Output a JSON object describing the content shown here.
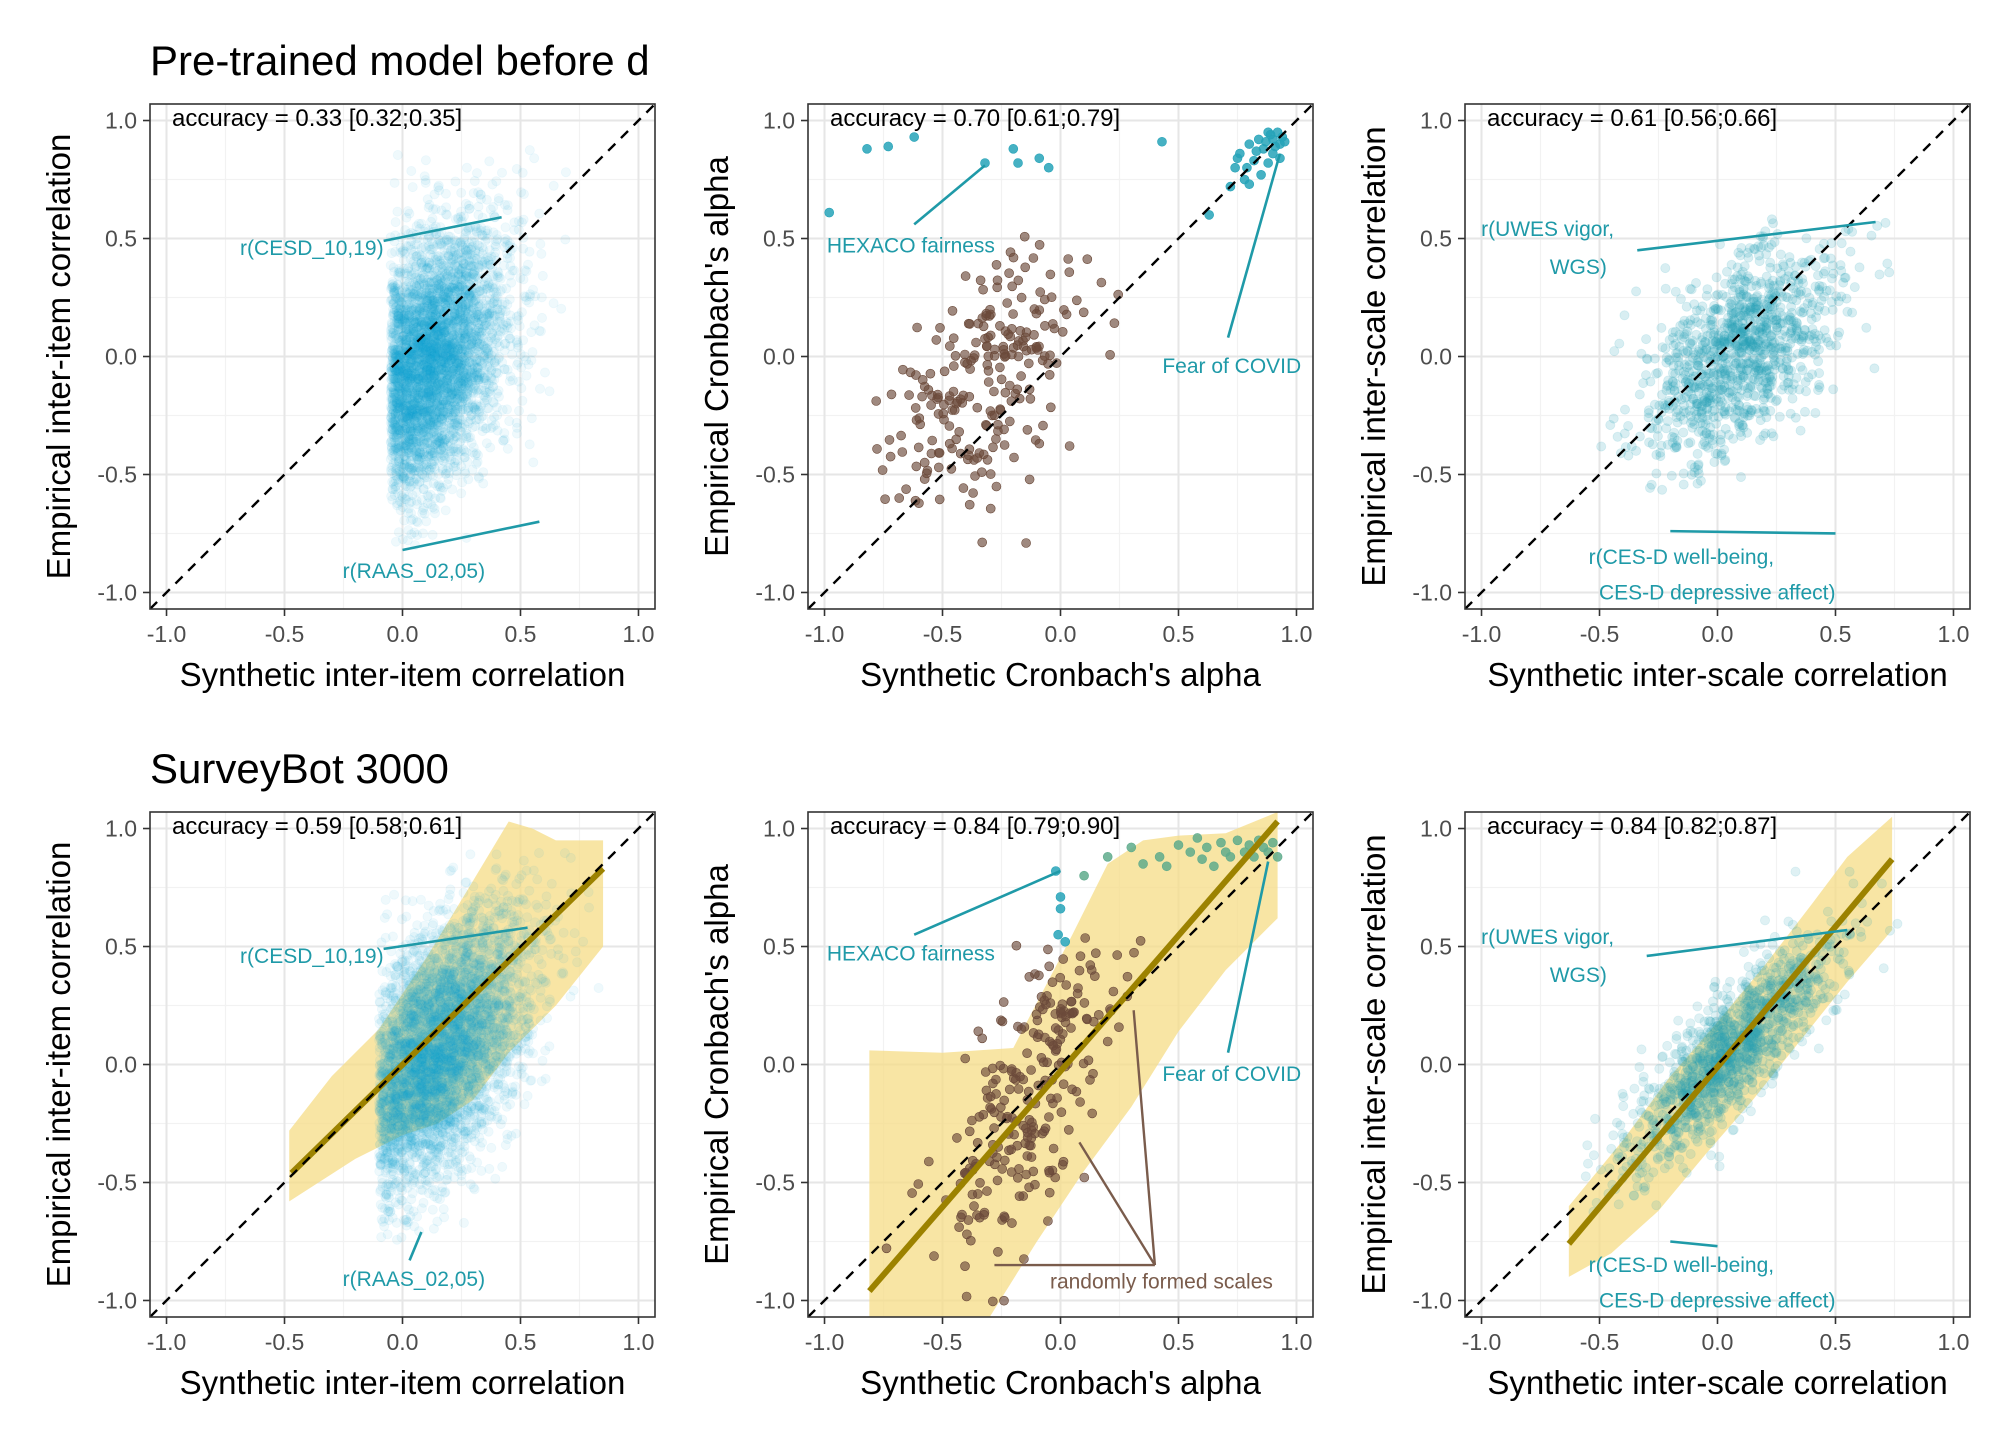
{
  "figure": {
    "row_titles": [
      "Pre-trained model before d",
      "SurveyBot 3000"
    ]
  },
  "colors": {
    "teal": "#26a3b8",
    "blue": "#1aa5d2",
    "brown": "#6b4a3a",
    "fit_line": "#9c8200",
    "band": "#f5dc85",
    "green": "#5fab8c",
    "annot_text": "#1f9aa8",
    "annot_brown": "#7a5c4c"
  },
  "chart_data": [
    {
      "id": "p1",
      "row": 0,
      "col": 0,
      "type": "scatter",
      "title": "accuracy = 0.33 [0.32;0.35]",
      "xlabel": "Synthetic inter-item correlation",
      "ylabel": "Empirical inter-item correlation",
      "xlim": [
        -1.07,
        1.07
      ],
      "ylim": [
        -1.07,
        1.07
      ],
      "ticks": [
        -1.0,
        -0.5,
        0.0,
        0.5,
        1.0
      ],
      "tick_labels": [
        "-1.0",
        "-0.5",
        "0.0",
        "0.5",
        "1.0"
      ],
      "reference_line": "y = x",
      "point_color": "blue",
      "point_alpha": 0.07,
      "cloud": {
        "n": 4500,
        "cx": 0.08,
        "cy": -0.05,
        "sx": 0.17,
        "sy": 0.28,
        "rho": 0.4,
        "xmin": -0.05,
        "xmax": 0.8,
        "ymin": -0.85,
        "ymax": 0.88
      },
      "annotations": [
        {
          "text": "r(CESD_10,19)",
          "x": -0.08,
          "y": 0.46,
          "anchor": "end",
          "line_to": [
            0.42,
            0.59
          ],
          "color": "annot_text"
        },
        {
          "text": "r(RAAS_02,05)",
          "x": 0.35,
          "y": -0.91,
          "anchor": "end",
          "line_to": [
            0.58,
            -0.7
          ],
          "line_from": [
            0.0,
            -0.82
          ],
          "color": "annot_text"
        }
      ]
    },
    {
      "id": "p2",
      "row": 0,
      "col": 1,
      "type": "scatter",
      "title": "accuracy = 0.70 [0.61;0.79]",
      "xlabel": "Synthetic Cronbach's alpha",
      "ylabel": "Empirical Cronbach's alpha",
      "xlim": [
        -1.07,
        1.07
      ],
      "ylim": [
        -1.07,
        1.07
      ],
      "ticks": [
        -1.0,
        -0.5,
        0.0,
        0.5,
        1.0
      ],
      "tick_labels": [
        "-1.0",
        "-0.5",
        "0.0",
        "0.5",
        "1.0"
      ],
      "reference_line": "y = x",
      "brown_cloud": {
        "n": 230,
        "cx": -0.3,
        "cy": -0.1,
        "sx": 0.2,
        "sy": 0.3,
        "rho": 0.5
      },
      "teal_points": [
        [
          -0.98,
          0.61
        ],
        [
          -0.82,
          0.88
        ],
        [
          -0.73,
          0.89
        ],
        [
          -0.62,
          0.93
        ],
        [
          -0.32,
          0.82
        ],
        [
          -0.2,
          0.88
        ],
        [
          -0.09,
          0.84
        ],
        [
          -0.18,
          0.82
        ],
        [
          -0.05,
          0.8
        ],
        [
          0.43,
          0.91
        ],
        [
          0.63,
          0.6
        ],
        [
          0.72,
          0.72
        ],
        [
          0.74,
          0.8
        ],
        [
          0.76,
          0.86
        ],
        [
          0.78,
          0.75
        ],
        [
          0.8,
          0.9
        ],
        [
          0.82,
          0.83
        ],
        [
          0.84,
          0.92
        ],
        [
          0.85,
          0.77
        ],
        [
          0.86,
          0.88
        ],
        [
          0.88,
          0.82
        ],
        [
          0.89,
          0.94
        ],
        [
          0.9,
          0.86
        ],
        [
          0.9,
          0.92
        ],
        [
          0.91,
          0.89
        ],
        [
          0.92,
          0.95
        ],
        [
          0.93,
          0.9
        ],
        [
          0.93,
          0.84
        ],
        [
          0.94,
          0.93
        ],
        [
          0.8,
          0.73
        ],
        [
          0.83,
          0.87
        ],
        [
          0.87,
          0.91
        ],
        [
          0.79,
          0.8
        ],
        [
          0.75,
          0.84
        ],
        [
          0.88,
          0.95
        ],
        [
          0.95,
          0.91
        ]
      ],
      "annotations": [
        {
          "text": "HEXACO fairness",
          "x": -0.99,
          "y": 0.47,
          "anchor": "start",
          "line_from": [
            -0.62,
            0.56
          ],
          "line_to": [
            -0.32,
            0.81
          ],
          "color": "annot_text"
        },
        {
          "text": "Fear of COVID",
          "x": 1.02,
          "y": -0.04,
          "anchor": "end",
          "line_from": [
            0.71,
            0.08
          ],
          "line_to": [
            0.93,
            0.86
          ],
          "color": "annot_text"
        }
      ]
    },
    {
      "id": "p3",
      "row": 0,
      "col": 2,
      "type": "scatter",
      "title": "accuracy = 0.61 [0.56;0.66]",
      "xlabel": "Synthetic inter-scale correlation",
      "ylabel": "Empirical inter-scale correlation",
      "xlim": [
        -1.07,
        1.07
      ],
      "ylim": [
        -1.07,
        1.07
      ],
      "ticks": [
        -1.0,
        -0.5,
        0.0,
        0.5,
        1.0
      ],
      "tick_labels": [
        "-1.0",
        "-0.5",
        "0.0",
        "0.5",
        "1.0"
      ],
      "reference_line": "y = x",
      "point_color": "teal",
      "point_alpha": 0.18,
      "cloud": {
        "n": 1100,
        "cx": 0.1,
        "cy": 0.02,
        "sx": 0.2,
        "sy": 0.22,
        "rho": 0.5,
        "xmin": -0.52,
        "xmax": 0.95,
        "ymin": -0.62,
        "ymax": 0.9
      },
      "annotations": [
        {
          "text": "r(UWES vigor,",
          "x": -0.72,
          "y": 0.54,
          "anchor": "middle",
          "color": "annot_text"
        },
        {
          "text": "WGS)",
          "x": -0.59,
          "y": 0.38,
          "anchor": "middle",
          "line_from": [
            -0.34,
            0.45
          ],
          "line_to": [
            0.67,
            0.57
          ],
          "color": "annot_text"
        },
        {
          "text": "r(CES-D well-being,",
          "x": 0.24,
          "y": -0.85,
          "anchor": "end",
          "line_from": [
            -0.2,
            -0.74
          ],
          "line_to": [
            0.5,
            -0.75
          ],
          "color": "annot_text"
        },
        {
          "text": "CES-D depressive affect)",
          "x": 0.5,
          "y": -1.0,
          "anchor": "end",
          "color": "annot_text"
        }
      ]
    },
    {
      "id": "p4",
      "row": 1,
      "col": 0,
      "type": "scatter",
      "title": "accuracy = 0.59 [0.58;0.61]",
      "xlabel": "Synthetic inter-item correlation",
      "ylabel": "Empirical inter-item correlation",
      "xlim": [
        -1.07,
        1.07
      ],
      "ylim": [
        -1.07,
        1.07
      ],
      "ticks": [
        -1.0,
        -0.5,
        0.0,
        0.5,
        1.0
      ],
      "tick_labels": [
        "-1.0",
        "-0.5",
        "0.0",
        "0.5",
        "1.0"
      ],
      "reference_line": "y = x",
      "fit_line": [
        [
          -0.47,
          -0.46
        ],
        [
          0.85,
          0.83
        ]
      ],
      "band_upper": [
        [
          -0.48,
          -0.28
        ],
        [
          -0.3,
          -0.05
        ],
        [
          -0.1,
          0.15
        ],
        [
          0.1,
          0.45
        ],
        [
          0.3,
          0.78
        ],
        [
          0.45,
          1.03
        ],
        [
          0.55,
          1.0
        ],
        [
          0.65,
          0.95
        ],
        [
          0.85,
          0.95
        ]
      ],
      "band_lower": [
        [
          0.85,
          0.5
        ],
        [
          0.65,
          0.25
        ],
        [
          0.45,
          0.05
        ],
        [
          0.3,
          -0.15
        ],
        [
          0.15,
          -0.25
        ],
        [
          0.0,
          -0.3
        ],
        [
          -0.2,
          -0.4
        ],
        [
          -0.48,
          -0.58
        ]
      ],
      "point_color": "blue",
      "point_alpha": 0.07,
      "cloud": {
        "n": 4500,
        "cx": 0.12,
        "cy": 0.02,
        "sx": 0.2,
        "sy": 0.3,
        "rho": 0.55,
        "xmin": -0.1,
        "xmax": 0.85,
        "ymin": -0.8,
        "ymax": 0.9
      },
      "annotations": [
        {
          "text": "r(CESD_10,19)",
          "x": -0.08,
          "y": 0.46,
          "anchor": "end",
          "line_to": [
            0.53,
            0.58
          ],
          "color": "annot_text"
        },
        {
          "text": "r(RAAS_02,05)",
          "x": 0.35,
          "y": -0.91,
          "anchor": "end",
          "line_from": [
            0.03,
            -0.83
          ],
          "line_to": [
            0.08,
            -0.71
          ],
          "color": "annot_text"
        }
      ]
    },
    {
      "id": "p5",
      "row": 1,
      "col": 1,
      "type": "scatter",
      "title": "accuracy = 0.84 [0.79;0.90]",
      "xlabel": "Synthetic Cronbach's alpha",
      "ylabel": "Empirical Cronbach's alpha",
      "xlim": [
        -1.07,
        1.07
      ],
      "ylim": [
        -1.07,
        1.07
      ],
      "ticks": [
        -1.0,
        -0.5,
        0.0,
        0.5,
        1.0
      ],
      "tick_labels": [
        "-1.0",
        "-0.5",
        "0.0",
        "0.5",
        "1.0"
      ],
      "reference_line": "y = x",
      "fit_line": [
        [
          -0.81,
          -0.96
        ],
        [
          0.92,
          1.03
        ]
      ],
      "band_upper": [
        [
          -0.81,
          0.06
        ],
        [
          -0.5,
          0.05
        ],
        [
          -0.2,
          0.07
        ],
        [
          0.05,
          0.55
        ],
        [
          0.2,
          0.85
        ],
        [
          0.35,
          0.95
        ],
        [
          0.5,
          0.97
        ],
        [
          0.7,
          0.98
        ],
        [
          0.92,
          1.07
        ]
      ],
      "band_lower": [
        [
          0.92,
          0.62
        ],
        [
          0.7,
          0.4
        ],
        [
          0.5,
          0.14
        ],
        [
          0.3,
          -0.18
        ],
        [
          0.1,
          -0.45
        ],
        [
          -0.1,
          -0.75
        ],
        [
          -0.3,
          -1.07
        ],
        [
          -0.81,
          -1.07
        ]
      ],
      "brown_cloud": {
        "n": 240,
        "cx": -0.1,
        "cy": -0.05,
        "sx": 0.18,
        "sy": 0.35,
        "rho": 0.65
      },
      "teal_points": [
        [
          -0.02,
          0.82
        ],
        [
          0.0,
          0.66
        ],
        [
          -0.01,
          0.55
        ],
        [
          0.02,
          0.52
        ],
        [
          0.0,
          0.71
        ]
      ],
      "green_points": [
        [
          0.2,
          0.88
        ],
        [
          0.3,
          0.92
        ],
        [
          0.42,
          0.88
        ],
        [
          0.5,
          0.93
        ],
        [
          0.55,
          0.9
        ],
        [
          0.6,
          0.87
        ],
        [
          0.62,
          0.92
        ],
        [
          0.68,
          0.94
        ],
        [
          0.7,
          0.9
        ],
        [
          0.72,
          0.88
        ],
        [
          0.75,
          0.95
        ],
        [
          0.78,
          0.9
        ],
        [
          0.8,
          0.93
        ],
        [
          0.82,
          0.88
        ],
        [
          0.84,
          0.95
        ],
        [
          0.86,
          0.92
        ],
        [
          0.88,
          0.9
        ],
        [
          0.9,
          0.94
        ],
        [
          0.35,
          0.85
        ],
        [
          0.45,
          0.84
        ],
        [
          0.65,
          0.84
        ],
        [
          0.58,
          0.96
        ],
        [
          0.1,
          0.8
        ],
        [
          0.92,
          0.88
        ]
      ],
      "annotations": [
        {
          "text": "HEXACO fairness",
          "x": -0.99,
          "y": 0.47,
          "anchor": "start",
          "line_from": [
            -0.62,
            0.55
          ],
          "line_to": [
            0.0,
            0.82
          ],
          "color": "annot_text"
        },
        {
          "text": "Fear of COVID",
          "x": 1.02,
          "y": -0.04,
          "anchor": "end",
          "line_from": [
            0.71,
            0.05
          ],
          "line_to": [
            0.88,
            0.86
          ],
          "color": "annot_text"
        },
        {
          "text": "randomly formed scales",
          "x": 0.9,
          "y": -0.92,
          "anchor": "end",
          "color": "annot_brown"
        }
      ],
      "brown_lines": [
        [
          [
            0.4,
            -0.85
          ],
          [
            0.31,
            0.23
          ]
        ],
        [
          [
            0.4,
            -0.85
          ],
          [
            0.08,
            -0.33
          ]
        ],
        [
          [
            0.4,
            -0.85
          ],
          [
            -0.28,
            -0.85
          ]
        ]
      ]
    },
    {
      "id": "p6",
      "row": 1,
      "col": 2,
      "type": "scatter",
      "title": "accuracy = 0.84 [0.82;0.87]",
      "xlabel": "Synthetic inter-scale correlation",
      "ylabel": "Empirical inter-scale correlation",
      "xlim": [
        -1.07,
        1.07
      ],
      "ylim": [
        -1.07,
        1.07
      ],
      "ticks": [
        -1.0,
        -0.5,
        0.0,
        0.5,
        1.0
      ],
      "tick_labels": [
        "-1.0",
        "-0.5",
        "0.0",
        "0.5",
        "1.0"
      ],
      "reference_line": "y = x",
      "fit_line": [
        [
          -0.63,
          -0.76
        ],
        [
          0.74,
          0.87
        ]
      ],
      "band_upper": [
        [
          -0.63,
          -0.6
        ],
        [
          -0.4,
          -0.32
        ],
        [
          -0.2,
          -0.05
        ],
        [
          0.0,
          0.18
        ],
        [
          0.2,
          0.42
        ],
        [
          0.4,
          0.68
        ],
        [
          0.55,
          0.88
        ],
        [
          0.74,
          1.05
        ]
      ],
      "band_lower": [
        [
          0.74,
          0.57
        ],
        [
          0.55,
          0.35
        ],
        [
          0.35,
          0.1
        ],
        [
          0.15,
          -0.15
        ],
        [
          -0.05,
          -0.38
        ],
        [
          -0.25,
          -0.62
        ],
        [
          -0.45,
          -0.8
        ],
        [
          -0.63,
          -0.9
        ]
      ],
      "point_color": "teal",
      "point_alpha": 0.15,
      "cloud": {
        "n": 1300,
        "cx": 0.05,
        "cy": 0.05,
        "sx": 0.22,
        "sy": 0.24,
        "rho": 0.85,
        "xmin": -0.62,
        "xmax": 0.8,
        "ymin": -0.72,
        "ymax": 0.95
      },
      "annotations": [
        {
          "text": "r(UWES vigor,",
          "x": -0.72,
          "y": 0.54,
          "anchor": "middle",
          "color": "annot_text"
        },
        {
          "text": "WGS)",
          "x": -0.59,
          "y": 0.38,
          "anchor": "middle",
          "line_from": [
            -0.3,
            0.46
          ],
          "line_to": [
            0.55,
            0.57
          ],
          "color": "annot_text"
        },
        {
          "text": "r(CES-D well-being,",
          "x": 0.24,
          "y": -0.85,
          "anchor": "end",
          "line_from": [
            -0.2,
            -0.75
          ],
          "line_to": [
            0.0,
            -0.77
          ],
          "color": "annot_text"
        },
        {
          "text": "CES-D depressive affect)",
          "x": 0.5,
          "y": -1.0,
          "anchor": "end",
          "color": "annot_text"
        }
      ]
    }
  ]
}
